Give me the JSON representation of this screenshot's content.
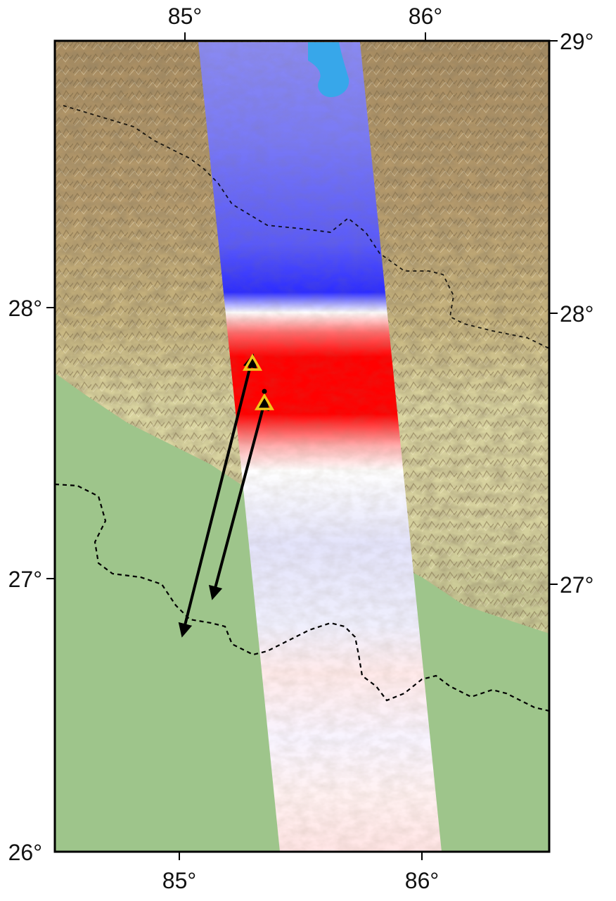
{
  "figure": {
    "top_labels": [
      "85°",
      "86°"
    ],
    "bottom_labels": [
      "85°",
      "86°"
    ],
    "left_labels": [
      "28°",
      "27°",
      "26°"
    ],
    "right_labels": [
      "29°",
      "28°",
      "27°"
    ]
  },
  "colors": {
    "frame": "#000000",
    "lowland": "#9ec58b",
    "hills_light": "#d9d4a0",
    "hills_mid": "#c7b57f",
    "mountains": "#a98d62",
    "deformation_positive": "#ff0000",
    "deformation_negative": "#2020ff",
    "deformation_neutral": "#ffffff",
    "lake": "#37a7ea",
    "station_marker": "#f0c51a"
  },
  "symbols": {
    "border": "dashed-black-line",
    "stations": "yellow-triangle",
    "look_direction": "black-double-arrow"
  }
}
